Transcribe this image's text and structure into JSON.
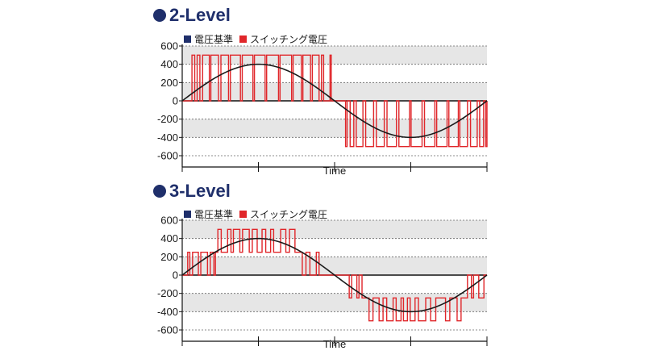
{
  "colors": {
    "reference": "#1a1a1a",
    "switching": "#e0262a",
    "band": "#e6e6e6",
    "title": "#1f2f6b"
  },
  "chart_data": [
    {
      "type": "line",
      "title": "2-Level",
      "xlabel": "Time",
      "ylabel": "",
      "ylim": [
        -600,
        600
      ],
      "yticks": [
        "600",
        "400",
        "200",
        "0",
        "-200",
        "-400",
        "-600"
      ],
      "legend": [
        "電圧基準",
        "スイッチング電圧"
      ],
      "legend_position": "top-left",
      "grid": true,
      "series": [
        {
          "name": "電圧基準",
          "kind": "sine",
          "amplitude": 400,
          "period": 1
        },
        {
          "name": "スイッチング電圧",
          "kind": "pwm",
          "levels": [
            -500,
            0,
            500
          ],
          "pulses": [
            [
              0.032,
              0.041,
              500
            ],
            [
              0.049,
              0.058,
              500
            ],
            [
              0.067,
              0.089,
              500
            ],
            [
              0.094,
              0.119,
              500
            ],
            [
              0.127,
              0.152,
              500
            ],
            [
              0.158,
              0.191,
              500
            ],
            [
              0.197,
              0.232,
              500
            ],
            [
              0.237,
              0.272,
              500
            ],
            [
              0.277,
              0.316,
              500
            ],
            [
              0.321,
              0.359,
              500
            ],
            [
              0.364,
              0.391,
              500
            ],
            [
              0.396,
              0.421,
              500
            ],
            [
              0.427,
              0.449,
              500
            ],
            [
              0.457,
              0.464,
              500
            ],
            [
              0.485,
              0.489,
              500
            ],
            [
              0.536,
              0.541,
              -500
            ],
            [
              0.551,
              0.563,
              -500
            ],
            [
              0.571,
              0.593,
              -500
            ],
            [
              0.602,
              0.628,
              -500
            ],
            [
              0.637,
              0.663,
              -500
            ],
            [
              0.672,
              0.703,
              -500
            ],
            [
              0.711,
              0.746,
              -500
            ],
            [
              0.751,
              0.787,
              -500
            ],
            [
              0.795,
              0.829,
              -500
            ],
            [
              0.835,
              0.869,
              -500
            ],
            [
              0.875,
              0.906,
              -500
            ],
            [
              0.911,
              0.936,
              -500
            ],
            [
              0.946,
              0.968,
              -500
            ],
            [
              0.976,
              0.989,
              -500
            ],
            [
              0.996,
              1.0,
              -500
            ]
          ]
        }
      ]
    },
    {
      "type": "line",
      "title": "3-Level",
      "xlabel": "Time",
      "ylabel": "",
      "ylim": [
        -600,
        600
      ],
      "yticks": [
        "600",
        "400",
        "200",
        "0",
        "-200",
        "-400",
        "-600"
      ],
      "legend": [
        "電圧基準",
        "スイッチング電圧"
      ],
      "legend_position": "top-left",
      "grid": true,
      "series": [
        {
          "name": "電圧基準",
          "kind": "sine",
          "amplitude": 400,
          "period": 1
        },
        {
          "name": "スイッチング電圧",
          "kind": "multilevel",
          "levels": [
            -500,
            -250,
            0,
            250,
            500
          ],
          "segments": [
            [
              0.0,
              0.018,
              0
            ],
            [
              0.018,
              0.025,
              250
            ],
            [
              0.025,
              0.034,
              0
            ],
            [
              0.034,
              0.053,
              250
            ],
            [
              0.053,
              0.061,
              0
            ],
            [
              0.061,
              0.083,
              250
            ],
            [
              0.083,
              0.092,
              0
            ],
            [
              0.092,
              0.104,
              250
            ],
            [
              0.104,
              0.109,
              0
            ],
            [
              0.109,
              0.117,
              250
            ],
            [
              0.117,
              0.128,
              500
            ],
            [
              0.128,
              0.149,
              250
            ],
            [
              0.149,
              0.16,
              500
            ],
            [
              0.16,
              0.168,
              250
            ],
            [
              0.168,
              0.189,
              500
            ],
            [
              0.189,
              0.198,
              250
            ],
            [
              0.198,
              0.22,
              500
            ],
            [
              0.22,
              0.23,
              250
            ],
            [
              0.23,
              0.246,
              500
            ],
            [
              0.246,
              0.262,
              250
            ],
            [
              0.262,
              0.274,
              500
            ],
            [
              0.274,
              0.29,
              250
            ],
            [
              0.29,
              0.3,
              500
            ],
            [
              0.3,
              0.323,
              250
            ],
            [
              0.323,
              0.34,
              500
            ],
            [
              0.34,
              0.352,
              250
            ],
            [
              0.352,
              0.37,
              500
            ],
            [
              0.37,
              0.394,
              250
            ],
            [
              0.394,
              0.406,
              0
            ],
            [
              0.406,
              0.419,
              250
            ],
            [
              0.419,
              0.44,
              0
            ],
            [
              0.44,
              0.449,
              250
            ],
            [
              0.449,
              0.48,
              0
            ],
            [
              0.52,
              0.548,
              0
            ],
            [
              0.548,
              0.556,
              -250
            ],
            [
              0.556,
              0.573,
              0
            ],
            [
              0.573,
              0.58,
              -250
            ],
            [
              0.58,
              0.59,
              0
            ],
            [
              0.59,
              0.613,
              -250
            ],
            [
              0.613,
              0.626,
              -500
            ],
            [
              0.626,
              0.646,
              -250
            ],
            [
              0.646,
              0.659,
              -500
            ],
            [
              0.659,
              0.671,
              -250
            ],
            [
              0.671,
              0.692,
              -500
            ],
            [
              0.692,
              0.702,
              -250
            ],
            [
              0.702,
              0.718,
              -500
            ],
            [
              0.718,
              0.726,
              -250
            ],
            [
              0.726,
              0.739,
              -500
            ],
            [
              0.739,
              0.748,
              -250
            ],
            [
              0.748,
              0.764,
              -500
            ],
            [
              0.764,
              0.775,
              -250
            ],
            [
              0.775,
              0.799,
              -500
            ],
            [
              0.799,
              0.815,
              -250
            ],
            [
              0.815,
              0.832,
              -500
            ],
            [
              0.832,
              0.864,
              -250
            ],
            [
              0.864,
              0.878,
              -500
            ],
            [
              0.878,
              0.902,
              -250
            ],
            [
              0.902,
              0.915,
              -500
            ],
            [
              0.915,
              0.936,
              -250
            ],
            [
              0.936,
              0.949,
              0
            ],
            [
              0.949,
              0.956,
              -250
            ],
            [
              0.956,
              0.973,
              0
            ],
            [
              0.973,
              0.99,
              -250
            ],
            [
              0.99,
              1.0,
              0
            ]
          ]
        }
      ]
    }
  ]
}
